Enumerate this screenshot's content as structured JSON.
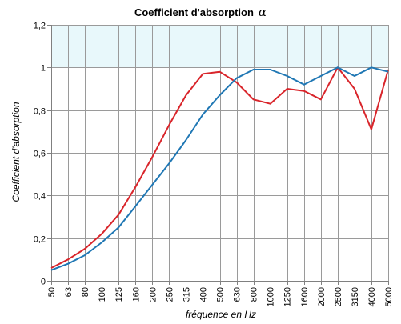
{
  "chart_data": {
    "type": "line",
    "title": "Coefficient d'absorption",
    "title_symbol": "α",
    "xlabel": "fréquence en Hz",
    "ylabel": "Coefficient d'absorption",
    "categories": [
      "50",
      "63",
      "80",
      "100",
      "125",
      "160",
      "200",
      "250",
      "315",
      "400",
      "500",
      "630",
      "800",
      "1000",
      "1250",
      "1600",
      "2000",
      "2500",
      "3150",
      "4000",
      "5000"
    ],
    "ylim": [
      0,
      1.2
    ],
    "yticks": [
      0,
      0.2,
      0.4,
      0.6,
      0.8,
      1,
      1.2
    ],
    "ytick_labels": [
      "0",
      "0,2",
      "0,4",
      "0,6",
      "0,8",
      "1",
      "1,2"
    ],
    "grid": true,
    "series": [
      {
        "color": "#d9252b",
        "values": [
          0.06,
          0.1,
          0.15,
          0.22,
          0.31,
          0.44,
          0.58,
          0.73,
          0.87,
          0.97,
          0.98,
          0.93,
          0.85,
          0.83,
          0.9,
          0.89,
          0.85,
          1.0,
          0.9,
          0.71,
          0.99
        ]
      },
      {
        "color": "#1f77b4",
        "values": [
          0.05,
          0.08,
          0.12,
          0.18,
          0.25,
          0.35,
          0.45,
          0.55,
          0.66,
          0.78,
          0.87,
          0.95,
          0.99,
          0.99,
          0.96,
          0.92,
          0.96,
          1.0,
          0.96,
          1.0,
          0.98
        ]
      }
    ],
    "plot_background": "#e8f8fb"
  }
}
